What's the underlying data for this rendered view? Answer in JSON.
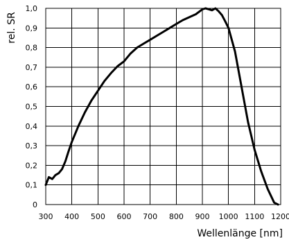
{
  "chart_data": {
    "type": "line",
    "title": "",
    "xlabel": "Wellenlänge [nm]",
    "ylabel": "rel. SR",
    "xlim": [
      300,
      1200
    ],
    "ylim": [
      0,
      1.0
    ],
    "grid": true,
    "x_ticks": [
      300,
      400,
      500,
      600,
      700,
      800,
      900,
      1000,
      1100,
      1200
    ],
    "x_tick_labels": [
      "300",
      "400",
      "500",
      "600",
      "700",
      "800",
      "900",
      "1000",
      "1100",
      "1200"
    ],
    "y_ticks": [
      0,
      0.1,
      0.2,
      0.3,
      0.4,
      0.5,
      0.6,
      0.7,
      0.8,
      0.9,
      1.0
    ],
    "y_tick_labels": [
      "0",
      "0,1",
      "0,2",
      "0,3",
      "0,4",
      "0,5",
      "0,6",
      "0,7",
      "0,8",
      "0,9",
      "1,0"
    ],
    "series": [
      {
        "x": [
          300,
          312,
          325,
          337,
          350,
          362,
          375,
          387,
          400,
          425,
          450,
          475,
          500,
          525,
          550,
          575,
          600,
          625,
          650,
          675,
          700,
          725,
          750,
          775,
          800,
          825,
          850,
          875,
          900,
          912,
          925,
          937,
          950,
          962,
          975,
          987,
          1000,
          1025,
          1050,
          1075,
          1100,
          1125,
          1150,
          1175,
          1190
        ],
        "y": [
          0.1,
          0.14,
          0.13,
          0.15,
          0.16,
          0.18,
          0.22,
          0.27,
          0.32,
          0.4,
          0.47,
          0.53,
          0.58,
          0.63,
          0.67,
          0.705,
          0.73,
          0.77,
          0.8,
          0.82,
          0.84,
          0.86,
          0.88,
          0.9,
          0.92,
          0.94,
          0.955,
          0.97,
          0.995,
          1.0,
          0.995,
          0.99,
          1.0,
          0.985,
          0.965,
          0.935,
          0.9,
          0.78,
          0.6,
          0.42,
          0.28,
          0.17,
          0.08,
          0.01,
          0.0
        ]
      }
    ]
  }
}
